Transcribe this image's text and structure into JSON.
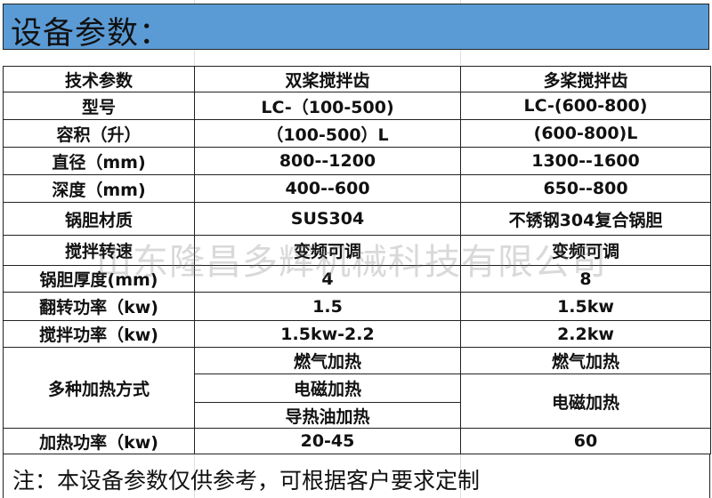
{
  "title": "设备参数：",
  "table": {
    "headers": [
      "技术参数",
      "双桨搅拌齿",
      "多桨搅拌齿"
    ],
    "rows": [
      [
        "型号",
        "LC-（100-500)",
        "LC-(600-800)"
      ],
      [
        "容积（升）",
        "（100-500）L",
        "(600-800)L"
      ],
      [
        "直径（mm)",
        "800--1200",
        "1300--1600"
      ],
      [
        "深度（mm)",
        "400--600",
        "650--800"
      ],
      [
        "锅胆材质",
        "SUS304",
        "不锈钢304复合锅胆"
      ],
      [
        "搅拌转速",
        "变频可调",
        "变频可调"
      ],
      [
        "锅胆厚度(mm)",
        "4",
        "8"
      ],
      [
        "翻转功率（kw)",
        "1.5",
        "1.5kw"
      ],
      [
        "搅拌功率（kw)",
        "1.5kw-2.2",
        "2.2kw"
      ]
    ],
    "heating": {
      "label": "多种加热方式",
      "col2": [
        "燃气加热",
        "电磁加热",
        "导热油加热"
      ],
      "col3": [
        "燃气加热",
        "电磁加热"
      ]
    },
    "power": [
      "加热功率（kw)",
      "20-45",
      "60"
    ]
  },
  "note": "注：本设备参数仅供参考，可根据客户要求定制",
  "watermark": "山东隆昌多辉机械科技有限公司",
  "colors": {
    "title_band": "#5b9bd5"
  }
}
